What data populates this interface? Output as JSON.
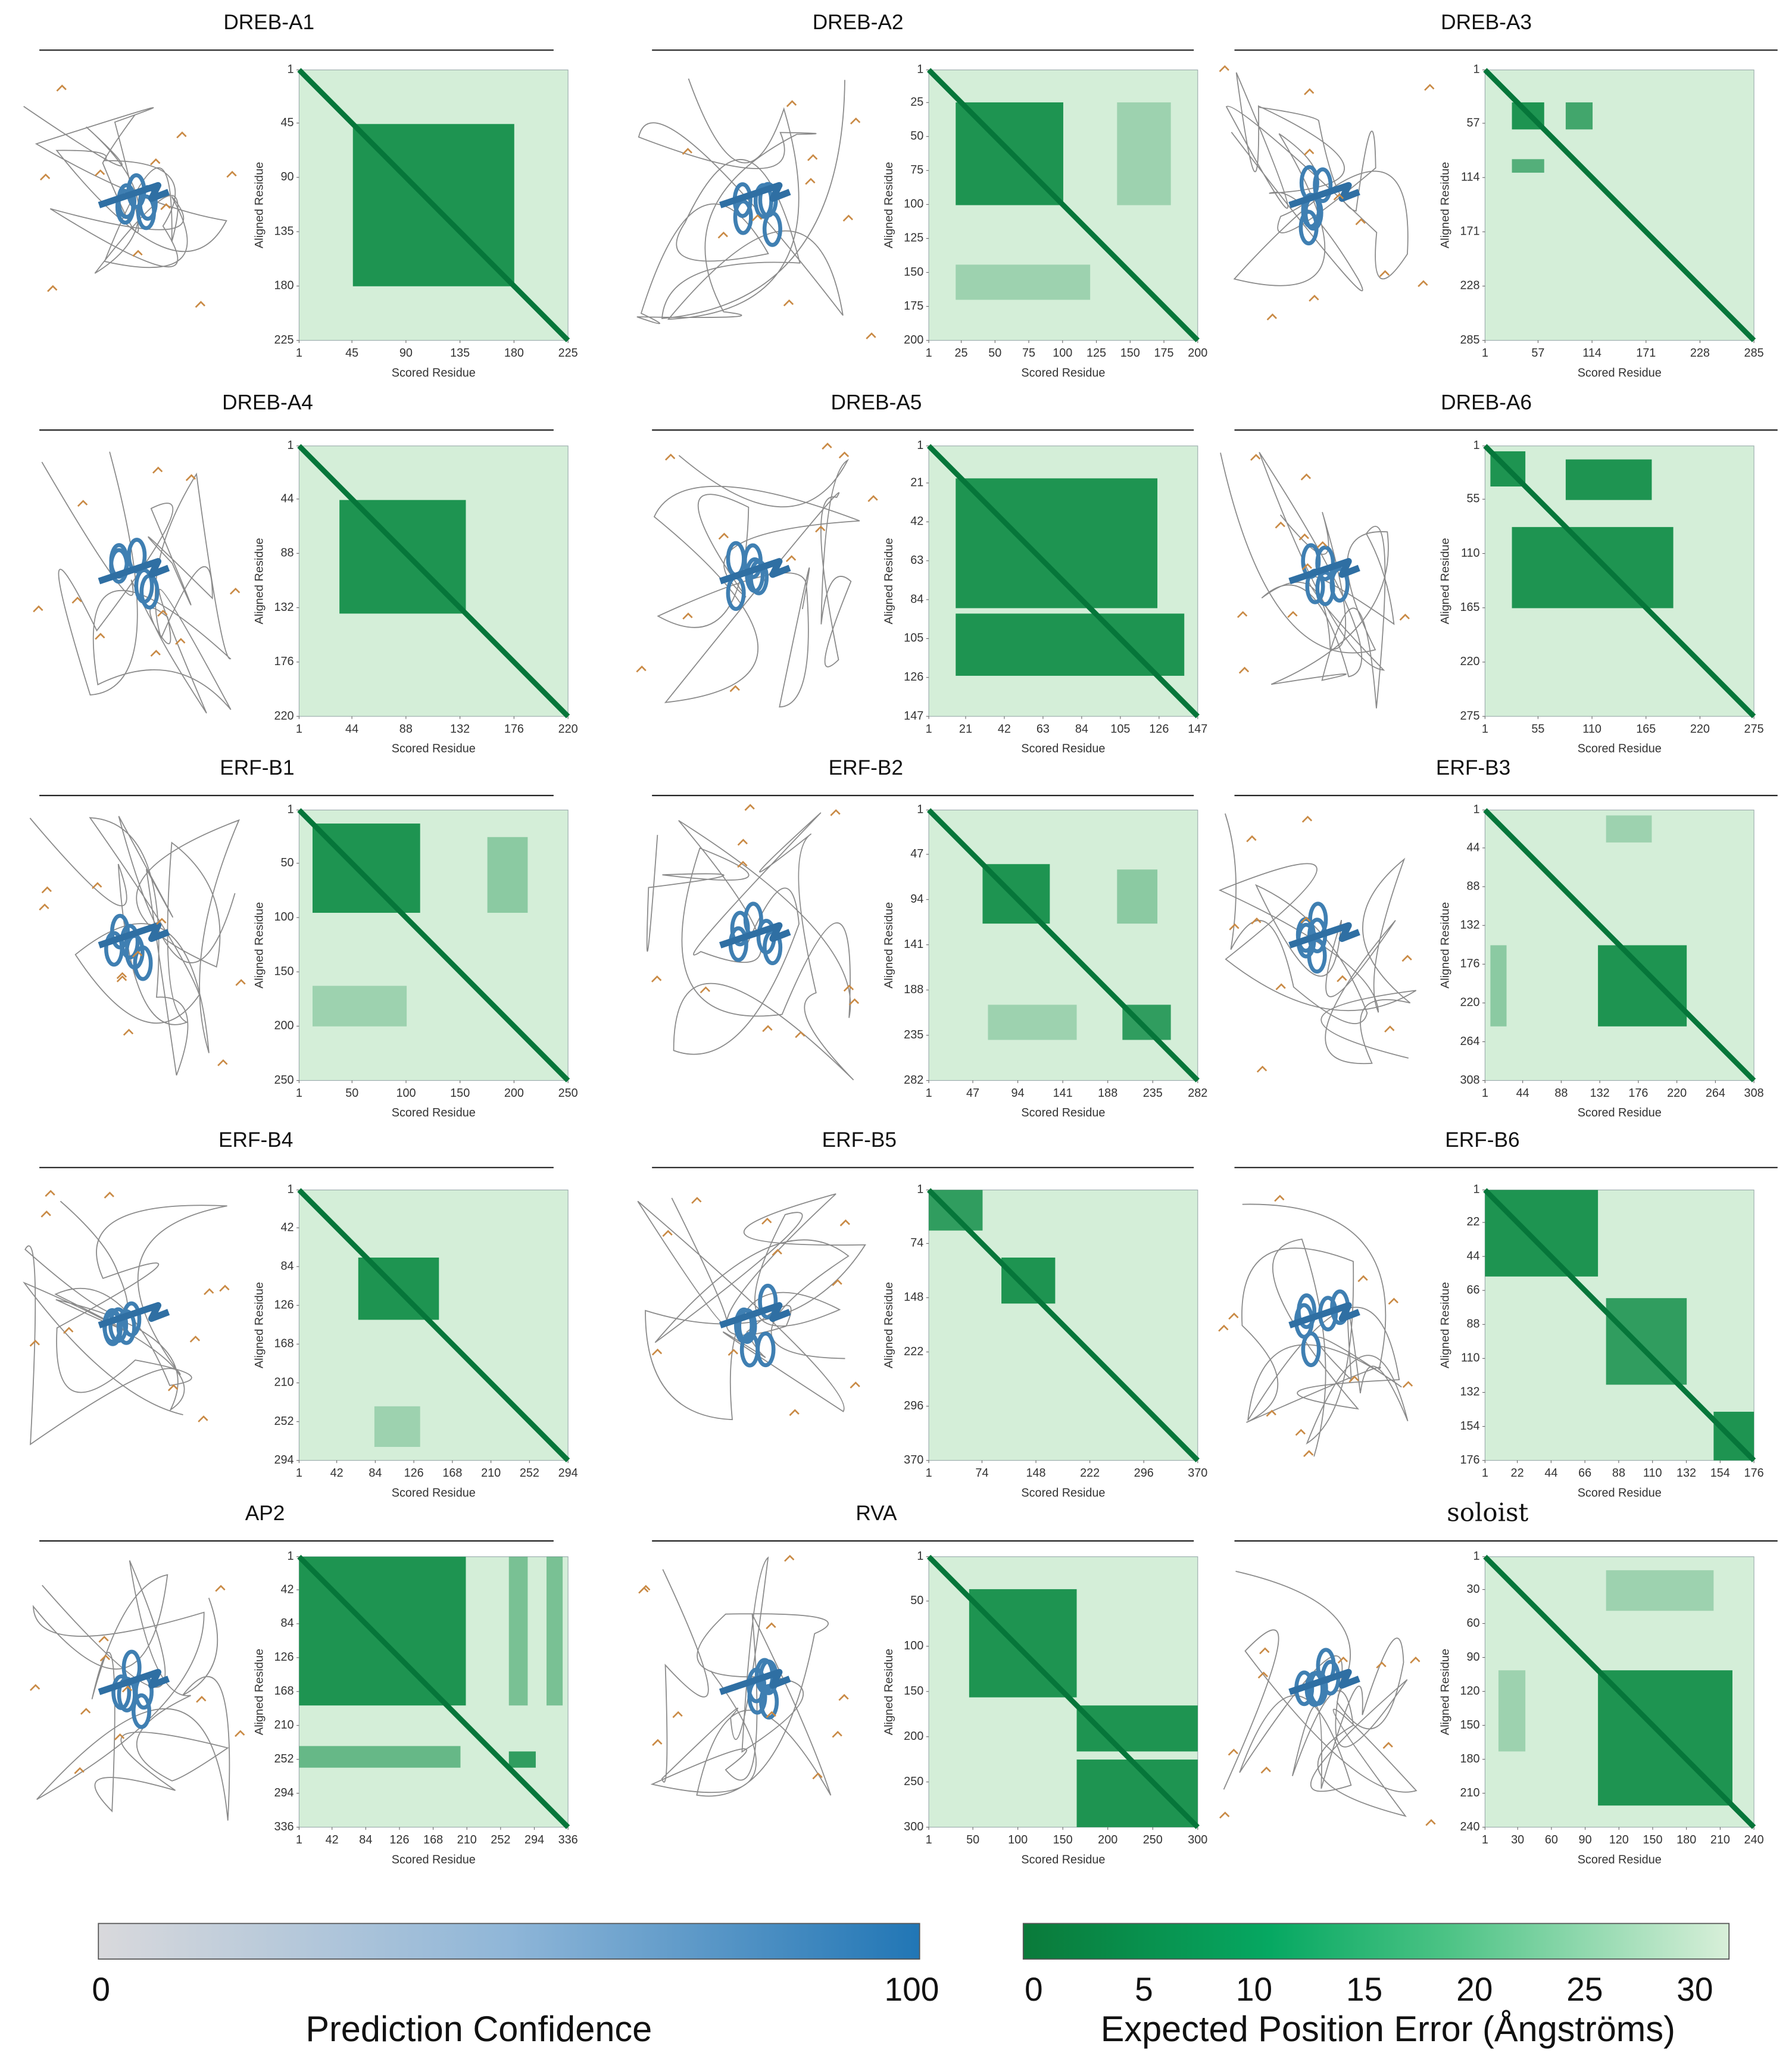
{
  "panels": [
    {
      "title": "DREB-A1",
      "xticks": [
        1,
        45,
        90,
        135,
        180,
        225
      ],
      "yticks": [
        1,
        45,
        90,
        135,
        180,
        225
      ],
      "xlim": [
        1,
        225
      ],
      "ylim": [
        1,
        225
      ],
      "x_label": "Scored Residue",
      "y_label": "Aligned Residue"
    },
    {
      "title": "DREB-A2",
      "xticks": [
        1,
        25,
        50,
        75,
        100,
        125,
        150,
        175,
        200
      ],
      "yticks": [
        1,
        25,
        50,
        75,
        100,
        125,
        150,
        175,
        200
      ],
      "xlim": [
        1,
        200
      ],
      "ylim": [
        1,
        200
      ],
      "x_label": "Scored Residue",
      "y_label": "Aligned Residue"
    },
    {
      "title": "DREB-A3",
      "xticks": [
        1,
        57,
        114,
        171,
        228,
        285
      ],
      "yticks": [
        1,
        57,
        114,
        171,
        228,
        285
      ],
      "xlim": [
        1,
        285
      ],
      "ylim": [
        1,
        285
      ],
      "x_label": "Scored Residue",
      "y_label": "Aligned Residue"
    },
    {
      "title": "DREB-A4",
      "xticks": [
        1,
        44,
        88,
        132,
        176,
        220
      ],
      "yticks": [
        1,
        44,
        88,
        132,
        176,
        220
      ],
      "xlim": [
        1,
        220
      ],
      "ylim": [
        1,
        220
      ],
      "x_label": "Scored Residue",
      "y_label": "Aligned Residue"
    },
    {
      "title": "DREB-A5",
      "xticks": [
        1,
        21,
        42,
        63,
        84,
        105,
        126,
        147
      ],
      "yticks": [
        1,
        21,
        42,
        63,
        84,
        105,
        126,
        147
      ],
      "xlim": [
        1,
        147
      ],
      "ylim": [
        1,
        147
      ],
      "x_label": "Scored Residue",
      "y_label": "Aligned Residue"
    },
    {
      "title": "DREB-A6",
      "xticks": [
        1,
        55,
        110,
        165,
        220,
        275
      ],
      "yticks": [
        1,
        55,
        110,
        165,
        220,
        275
      ],
      "xlim": [
        1,
        275
      ],
      "ylim": [
        1,
        275
      ],
      "x_label": "Scored Residue",
      "y_label": "Aligned Residue"
    },
    {
      "title": "ERF-B1",
      "xticks": [
        1,
        50,
        100,
        150,
        200,
        250
      ],
      "yticks": [
        1,
        50,
        100,
        150,
        200,
        250
      ],
      "xlim": [
        1,
        250
      ],
      "ylim": [
        1,
        250
      ],
      "x_label": "Scored Residue",
      "y_label": "Aligned Residue"
    },
    {
      "title": "ERF-B2",
      "xticks": [
        1,
        47,
        94,
        141,
        188,
        235,
        282
      ],
      "yticks": [
        1,
        47,
        94,
        141,
        188,
        235,
        282
      ],
      "xlim": [
        1,
        282
      ],
      "ylim": [
        1,
        282
      ],
      "x_label": "Scored Residue",
      "y_label": "Aligned Residue"
    },
    {
      "title": "ERF-B3",
      "xticks": [
        1,
        44,
        88,
        132,
        176,
        220,
        264,
        308
      ],
      "yticks": [
        1,
        44,
        88,
        132,
        176,
        220,
        264,
        308
      ],
      "xlim": [
        1,
        308
      ],
      "ylim": [
        1,
        308
      ],
      "x_label": "Scored Residue",
      "y_label": "Aligned Residue"
    },
    {
      "title": "ERF-B4",
      "xticks": [
        1,
        42,
        84,
        126,
        168,
        210,
        252,
        294
      ],
      "yticks": [
        1,
        42,
        84,
        126,
        168,
        210,
        252,
        294
      ],
      "xlim": [
        1,
        294
      ],
      "ylim": [
        1,
        294
      ],
      "x_label": "Scored Residue",
      "y_label": "Aligned Residue"
    },
    {
      "title": "ERF-B5",
      "xticks": [
        1,
        74,
        148,
        222,
        296,
        370
      ],
      "yticks": [
        1,
        74,
        148,
        222,
        296,
        370
      ],
      "xlim": [
        1,
        370
      ],
      "ylim": [
        1,
        370
      ],
      "x_label": "Scored Residue",
      "y_label": "Aligned Residue"
    },
    {
      "title": "ERF-B6",
      "xticks": [
        1,
        22,
        44,
        66,
        88,
        110,
        132,
        154,
        176
      ],
      "yticks": [
        1,
        22,
        44,
        66,
        88,
        110,
        132,
        154,
        176
      ],
      "xlim": [
        1,
        176
      ],
      "ylim": [
        1,
        176
      ],
      "x_label": "Scored Residue",
      "y_label": "Aligned Residue"
    },
    {
      "title": "AP2",
      "xticks": [
        1,
        42,
        84,
        126,
        168,
        210,
        252,
        294,
        336
      ],
      "yticks": [
        1,
        42,
        84,
        126,
        168,
        210,
        252,
        294,
        336
      ],
      "xlim": [
        1,
        336
      ],
      "ylim": [
        1,
        336
      ],
      "x_label": "Scored Residue",
      "y_label": "Aligned Residue"
    },
    {
      "title": "RVA",
      "xticks": [
        1,
        50,
        100,
        150,
        200,
        250,
        300
      ],
      "yticks": [
        1,
        50,
        100,
        150,
        200,
        250,
        300
      ],
      "xlim": [
        1,
        300
      ],
      "ylim": [
        1,
        300
      ],
      "x_label": "Scored Residue",
      "y_label": "Aligned Residue"
    },
    {
      "title": "soloist",
      "xticks": [
        1,
        30,
        60,
        90,
        120,
        150,
        180,
        210,
        240
      ],
      "yticks": [
        1,
        30,
        60,
        90,
        120,
        150,
        180,
        210,
        240
      ],
      "xlim": [
        1,
        240
      ],
      "ylim": [
        1,
        240
      ],
      "x_label": "Scored Residue",
      "y_label": "Aligned Residue"
    }
  ],
  "colorbars": [
    {
      "label": "Prediction Confidence",
      "ticks": [
        0,
        100
      ],
      "lim": [
        0,
        100
      ]
    },
    {
      "label": "Expected Position Error (Ångströms)",
      "ticks": [
        0,
        5,
        10,
        15,
        20,
        25,
        30
      ],
      "lim": [
        0,
        30
      ]
    }
  ]
}
